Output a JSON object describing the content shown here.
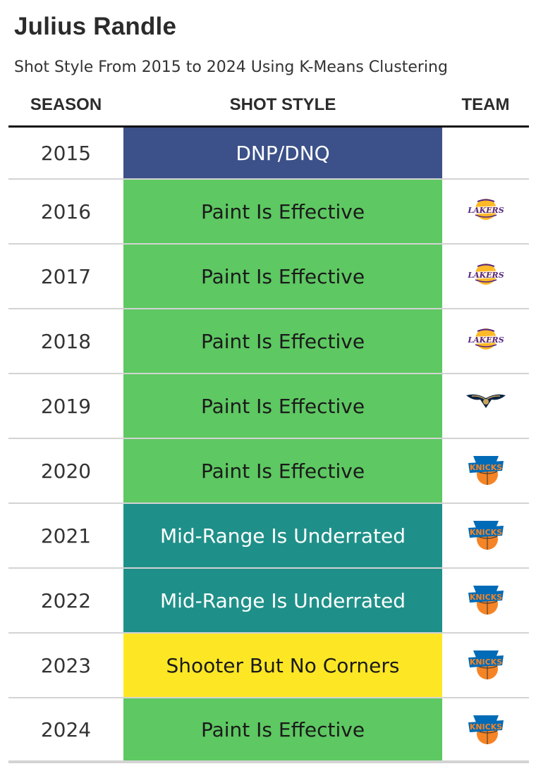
{
  "title": "Julius Randle",
  "subtitle": "Shot Style From 2015 to 2024 Using K-Means Clustering",
  "headers": {
    "season": "SEASON",
    "style": "SHOT STYLE",
    "team": "TEAM"
  },
  "colors": {
    "dnp": "#3c5189",
    "paint": "#5ec862",
    "midrange": "#1f9089",
    "shooter": "#fde725",
    "lakers_purple": "#552583",
    "lakers_gold": "#fdb927",
    "pelicans_navy": "#0c2340",
    "pelicans_gold": "#c8a45c",
    "knicks_blue": "#006bb6",
    "knicks_orange": "#f58426"
  },
  "chart_data": {
    "type": "table",
    "columns": [
      "SEASON",
      "SHOT STYLE",
      "TEAM"
    ],
    "rows": [
      {
        "season": "2015",
        "style": "DNP/DNQ",
        "style_key": "dnp",
        "team": ""
      },
      {
        "season": "2016",
        "style": "Paint Is Effective",
        "style_key": "paint",
        "team": "lakers-logo"
      },
      {
        "season": "2017",
        "style": "Paint Is Effective",
        "style_key": "paint",
        "team": "lakers-logo"
      },
      {
        "season": "2018",
        "style": "Paint Is Effective",
        "style_key": "paint",
        "team": "lakers-logo"
      },
      {
        "season": "2019",
        "style": "Paint Is Effective",
        "style_key": "paint",
        "team": "pelicans-logo"
      },
      {
        "season": "2020",
        "style": "Paint Is Effective",
        "style_key": "paint",
        "team": "knicks-logo"
      },
      {
        "season": "2021",
        "style": "Mid-Range Is Underrated",
        "style_key": "midrange",
        "team": "knicks-logo"
      },
      {
        "season": "2022",
        "style": "Mid-Range Is Underrated",
        "style_key": "midrange",
        "team": "knicks-logo"
      },
      {
        "season": "2023",
        "style": "Shooter But No Corners",
        "style_key": "shooter",
        "team": "knicks-logo"
      },
      {
        "season": "2024",
        "style": "Paint Is Effective",
        "style_key": "paint",
        "team": "knicks-logo"
      }
    ]
  }
}
